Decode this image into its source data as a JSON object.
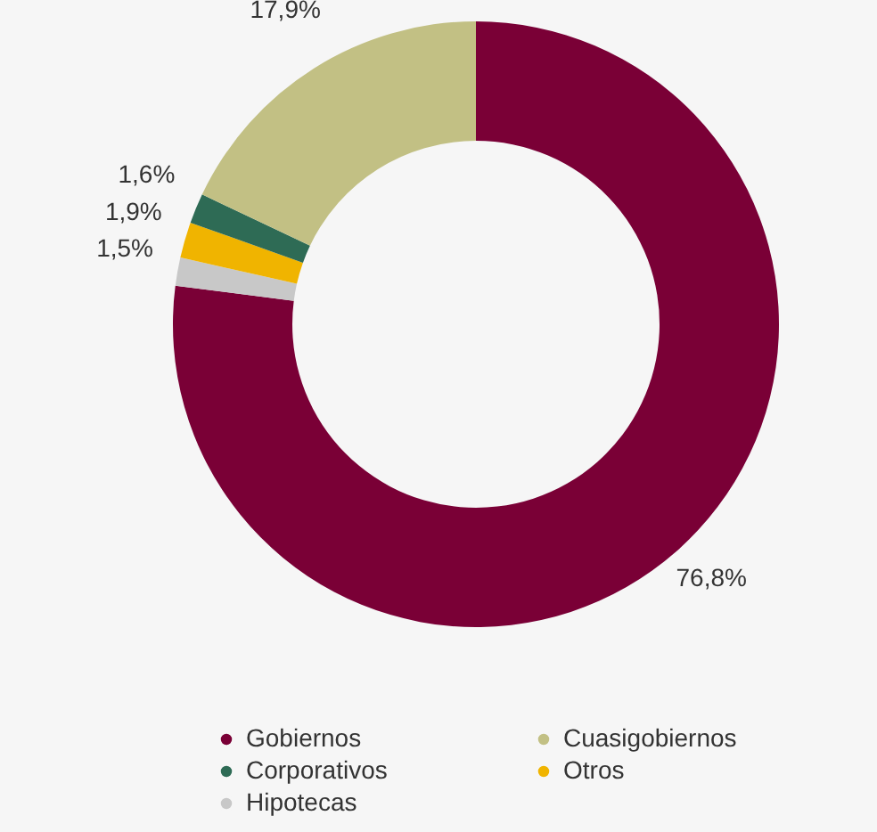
{
  "chart_data": {
    "type": "donut",
    "categories": [
      "Gobiernos",
      "Hipotecas",
      "Otros",
      "Corporativos",
      "Cuasigobiernos"
    ],
    "values": [
      76.8,
      1.5,
      1.9,
      1.6,
      17.9
    ],
    "colors": [
      "#7a0036",
      "#c8c8c8",
      "#f0b400",
      "#2e6b55",
      "#c2c084"
    ],
    "value_labels": [
      "76,8%",
      "1,5%",
      "1,9%",
      "1,6%",
      "17,9%"
    ],
    "legend": "bottom"
  }
}
